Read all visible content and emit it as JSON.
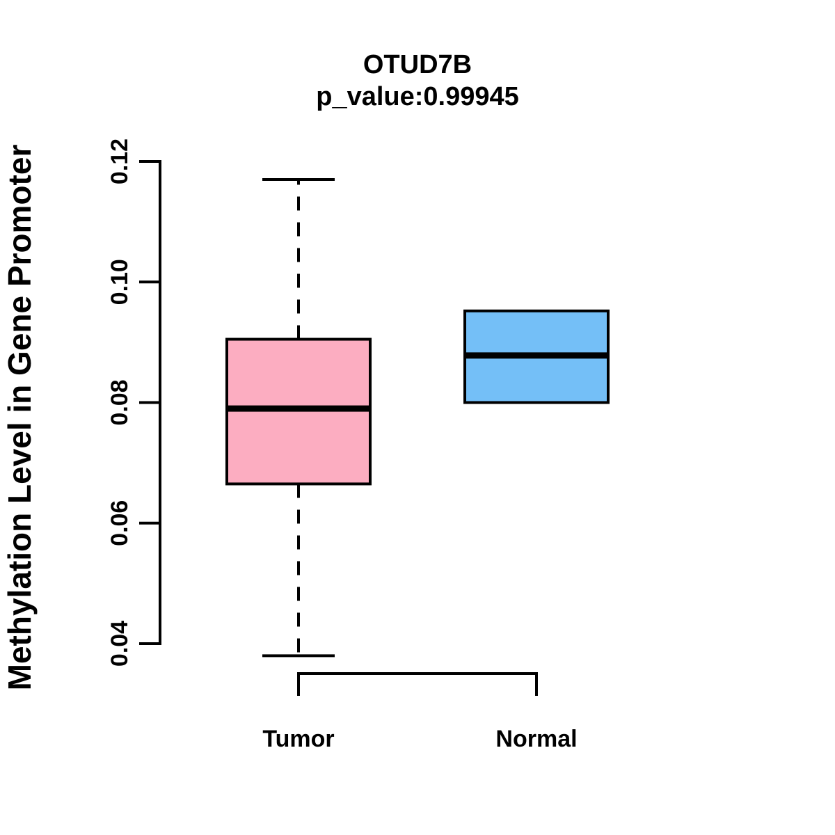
{
  "header": {
    "title": "OTUD7B",
    "subtitle": "p_value:0.99945"
  },
  "chart_data": {
    "type": "boxplot",
    "title": "OTUD7B",
    "subtitle": "p_value:0.99945",
    "ylabel": "Methylation Level in Gene Promoter",
    "xlabel": "",
    "categories": [
      "Tumor",
      "Normal"
    ],
    "series": [
      {
        "name": "Tumor",
        "min": 0.038,
        "q1": 0.0665,
        "median": 0.079,
        "q3": 0.0905,
        "max": 0.117,
        "fill": "#FCADC1"
      },
      {
        "name": "Normal",
        "min": 0.08,
        "q1": 0.08,
        "median": 0.0878,
        "q3": 0.0952,
        "max": 0.0952,
        "fill": "#74BFF7"
      }
    ],
    "ylim": [
      0.04,
      0.12
    ],
    "yticks": [
      0.04,
      0.06,
      0.08,
      0.1,
      0.12
    ],
    "ytick_labels": [
      "0.04",
      "0.06",
      "0.08",
      "0.10",
      "0.12"
    ],
    "grid": false,
    "legend": "none",
    "whisker_style": "dashed",
    "box_border_color": "#000000",
    "median_color": "#000000",
    "axis_color": "#000000",
    "background": "#FFFFFF"
  }
}
